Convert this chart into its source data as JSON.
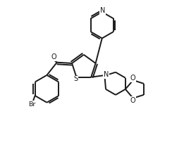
{
  "bg_color": "#ffffff",
  "line_color": "#1a1a1a",
  "line_width": 1.4,
  "figsize": [
    2.61,
    2.09
  ],
  "dpi": 100,
  "xlim": [
    0,
    10
  ],
  "ylim": [
    0,
    8
  ]
}
